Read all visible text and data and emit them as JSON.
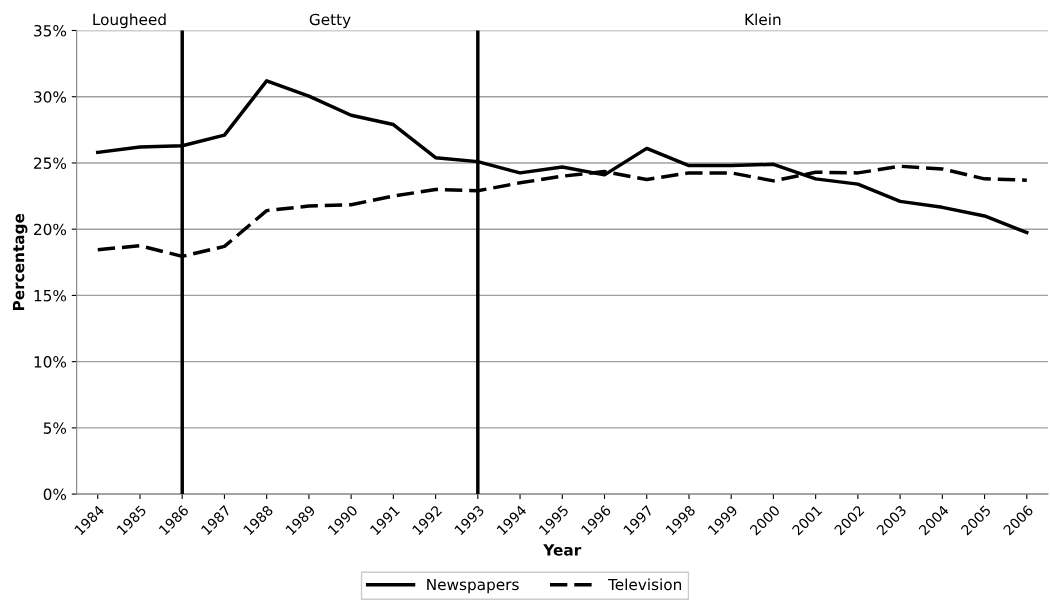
{
  "chart_data": {
    "type": "line",
    "xlabel": "Year",
    "ylabel": "Percentage",
    "categories": [
      "1984",
      "1985",
      "1986",
      "1987",
      "1988",
      "1989",
      "1990",
      "1991",
      "1992",
      "1993",
      "1994",
      "1995",
      "1996",
      "1997",
      "1998",
      "1999",
      "2000",
      "2001",
      "2002",
      "2003",
      "2004",
      "2005",
      "2006"
    ],
    "series": [
      {
        "name": "Newspapers",
        "color": "#000000",
        "line_style": "solid",
        "values": [
          25.8,
          26.2,
          26.3,
          27.1,
          31.2,
          30.05,
          28.6,
          27.9,
          25.4,
          25.1,
          24.25,
          24.7,
          24.1,
          26.1,
          24.8,
          24.8,
          24.9,
          23.8,
          23.4,
          22.1,
          21.65,
          21.0,
          19.75
        ]
      },
      {
        "name": "Television",
        "color": "#000000",
        "line_style": "dashed",
        "values": [
          18.45,
          18.75,
          17.95,
          18.7,
          21.4,
          21.75,
          21.85,
          22.5,
          23.0,
          22.9,
          23.5,
          24.0,
          24.35,
          23.75,
          24.25,
          24.25,
          23.65,
          24.3,
          24.25,
          24.75,
          24.55,
          23.8,
          23.7
        ]
      }
    ],
    "ylim": [
      0,
      35
    ],
    "yticks": [
      {
        "value": 0,
        "label": "0%"
      },
      {
        "value": 5,
        "label": "5%"
      },
      {
        "value": 10,
        "label": "10%"
      },
      {
        "value": 15,
        "label": "15%"
      },
      {
        "value": 20,
        "label": "20%"
      },
      {
        "value": 25,
        "label": "25%"
      },
      {
        "value": 30,
        "label": "30%"
      },
      {
        "value": 35,
        "label": "35%"
      }
    ],
    "ref_lines": [
      {
        "axis": "x",
        "value": "1986",
        "color": "#000000",
        "line_style": "solid"
      },
      {
        "axis": "x",
        "value": "1993",
        "color": "#000000",
        "line_style": "solid"
      }
    ],
    "annotations": [
      "Lougheed",
      "Getty",
      "Klein"
    ],
    "grid": "y",
    "legend": "bottom",
    "marker": "none"
  }
}
